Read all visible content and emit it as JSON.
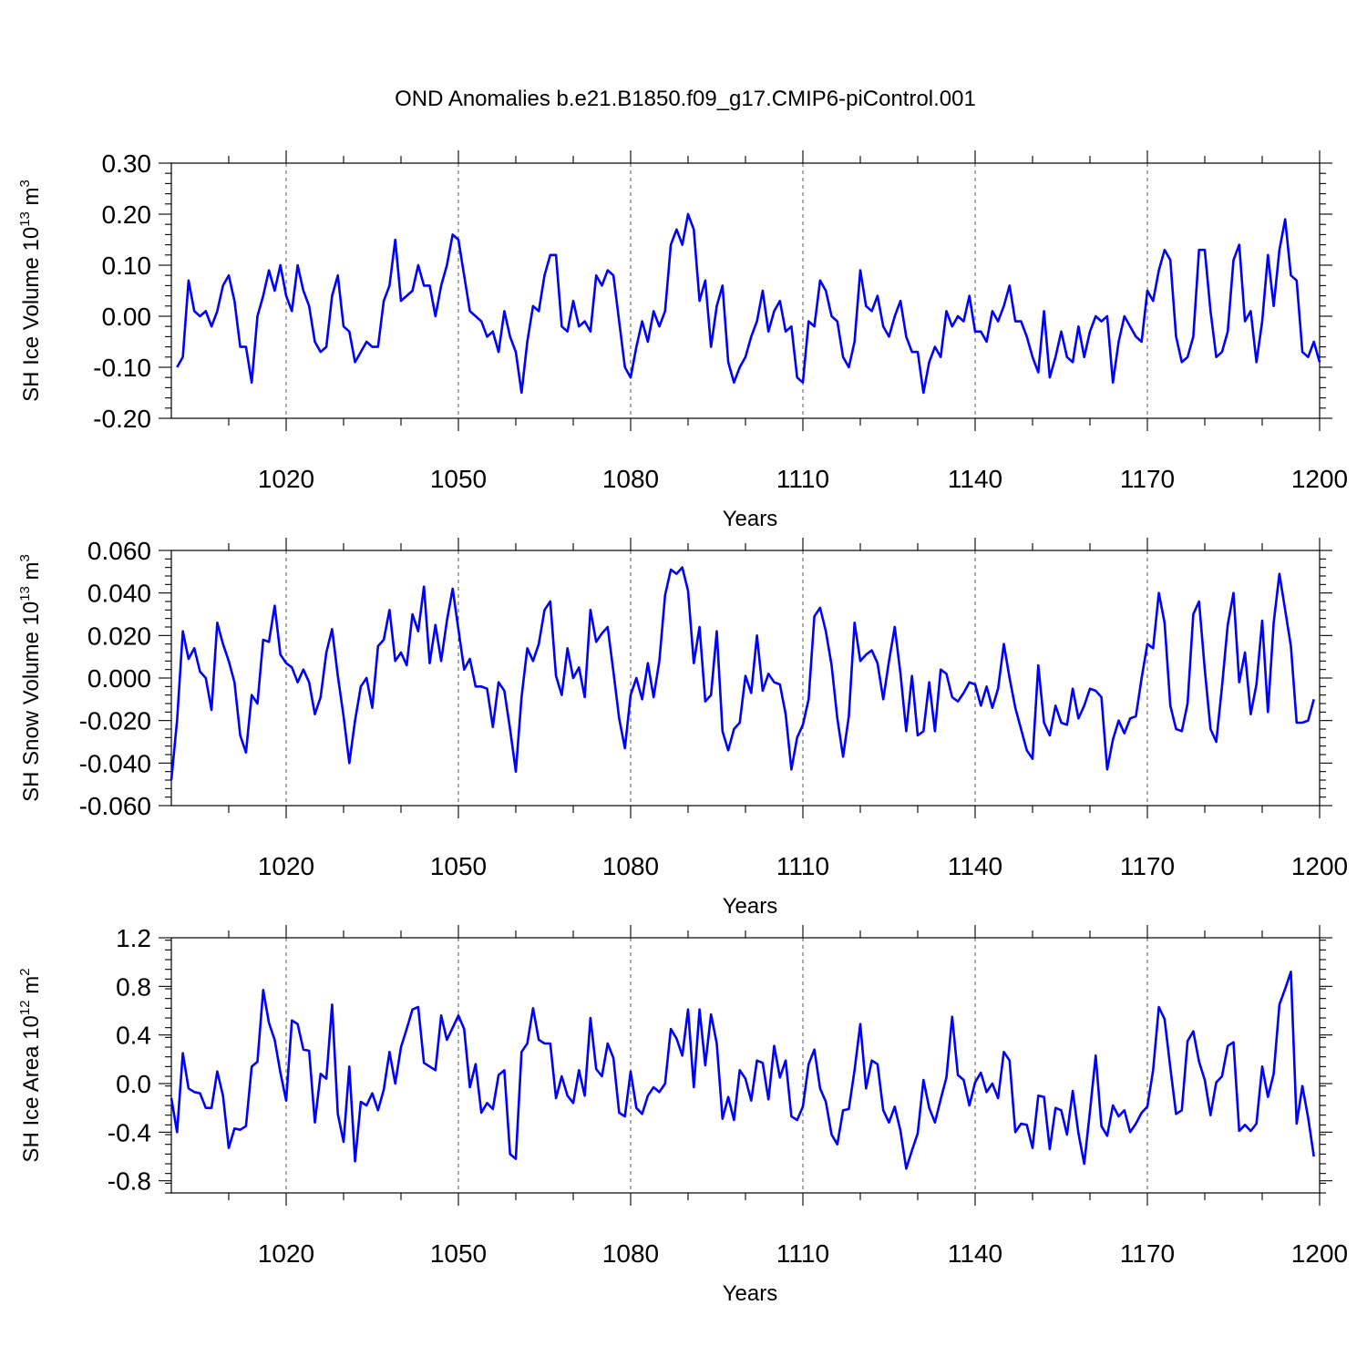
{
  "page": {
    "title": "OND Anomalies b.e21.B1850.f09_g17.CMIP6-piControl.001"
  },
  "style": {
    "line_color": "#0000ff",
    "frame_color": "#000000"
  },
  "chart_data": [
    {
      "type": "line",
      "title": "OND Anomalies b.e21.B1850.f09_g17.CMIP6-piControl.001",
      "xlabel": "Years",
      "ylabel": "SH Ice Volume 10",
      "ylabel_sup1": "13",
      "ylabel_mid": " m",
      "ylabel_sup2": "3",
      "xlim": [
        1000,
        1200
      ],
      "ylim": [
        -0.2,
        0.3
      ],
      "xticks": [
        1020,
        1050,
        1080,
        1110,
        1140,
        1170,
        1200
      ],
      "xtick_labels": [
        "1020",
        "1050",
        "1080",
        "1110",
        "1140",
        "1170",
        "1200"
      ],
      "yticks": [
        -0.2,
        -0.1,
        0.0,
        0.1,
        0.2,
        0.3
      ],
      "ytick_labels": [
        "-0.20",
        "-0.10",
        "0.00",
        "0.10",
        "0.20",
        "0.30"
      ],
      "grid": "vertical dashed at major x ticks",
      "x_start": 1001,
      "series": [
        {
          "name": "SH Ice Volume",
          "values": [
            -0.1,
            -0.08,
            0.07,
            0.01,
            0.0,
            0.01,
            -0.02,
            0.01,
            0.06,
            0.08,
            0.03,
            -0.06,
            -0.06,
            -0.13,
            0.0,
            0.04,
            0.09,
            0.05,
            0.1,
            0.04,
            0.01,
            0.1,
            0.05,
            0.02,
            -0.05,
            -0.07,
            -0.06,
            0.04,
            0.08,
            -0.02,
            -0.03,
            -0.09,
            -0.07,
            -0.05,
            -0.06,
            -0.06,
            0.03,
            0.06,
            0.15,
            0.03,
            0.04,
            0.05,
            0.1,
            0.06,
            0.06,
            0.0,
            0.06,
            0.1,
            0.16,
            0.15,
            0.08,
            0.01,
            0.0,
            -0.01,
            -0.04,
            -0.03,
            -0.07,
            0.01,
            -0.04,
            -0.07,
            -0.15,
            -0.05,
            0.02,
            0.01,
            0.08,
            0.12,
            0.12,
            -0.02,
            -0.03,
            0.03,
            -0.02,
            -0.01,
            -0.03,
            0.08,
            0.06,
            0.09,
            0.08,
            -0.01,
            -0.1,
            -0.12,
            -0.06,
            -0.01,
            -0.05,
            0.01,
            -0.02,
            0.01,
            0.14,
            0.17,
            0.14,
            0.2,
            0.17,
            0.03,
            0.07,
            -0.06,
            0.02,
            0.06,
            -0.09,
            -0.13,
            -0.1,
            -0.08,
            -0.04,
            -0.01,
            0.05,
            -0.03,
            0.01,
            0.03,
            -0.03,
            -0.02,
            -0.12,
            -0.13,
            -0.01,
            -0.02,
            0.07,
            0.05,
            0.0,
            -0.01,
            -0.08,
            -0.1,
            -0.05,
            0.09,
            0.02,
            0.01,
            0.04,
            -0.02,
            -0.04,
            0.0,
            0.03,
            -0.04,
            -0.07,
            -0.07,
            -0.15,
            -0.09,
            -0.06,
            -0.08,
            0.01,
            -0.02,
            0.0,
            -0.01,
            0.04,
            -0.03,
            -0.03,
            -0.05,
            0.01,
            -0.01,
            0.02,
            0.06,
            -0.01,
            -0.01,
            -0.04,
            -0.08,
            -0.11,
            0.01,
            -0.12,
            -0.08,
            -0.03,
            -0.08,
            -0.09,
            -0.02,
            -0.08,
            -0.03,
            0.0,
            -0.01,
            0.0,
            -0.13,
            -0.05,
            0.0,
            -0.02,
            -0.04,
            -0.05,
            0.05,
            0.03,
            0.09,
            0.13,
            0.11,
            -0.04,
            -0.09,
            -0.08,
            -0.04,
            0.13,
            0.13,
            0.01,
            -0.08,
            -0.07,
            -0.03,
            0.11,
            0.14,
            -0.01,
            0.01,
            -0.09,
            -0.01,
            0.12,
            0.02,
            0.13,
            0.19,
            0.08,
            0.07,
            -0.07,
            -0.08,
            -0.05,
            -0.09
          ]
        }
      ]
    },
    {
      "type": "line",
      "xlabel": "Years",
      "ylabel": "SH Snow Volume 10",
      "ylabel_sup1": "13",
      "ylabel_mid": " m",
      "ylabel_sup2": "3",
      "xlim": [
        1000,
        1200
      ],
      "ylim": [
        -0.06,
        0.06
      ],
      "xticks": [
        1020,
        1050,
        1080,
        1110,
        1140,
        1170,
        1200
      ],
      "xtick_labels": [
        "1020",
        "1050",
        "1080",
        "1110",
        "1140",
        "1170",
        "1200"
      ],
      "yticks": [
        -0.06,
        -0.04,
        -0.02,
        0.0,
        0.02,
        0.04,
        0.06
      ],
      "ytick_labels": [
        "-0.060",
        "-0.040",
        "-0.020",
        "0.000",
        "0.020",
        "0.040",
        "0.060"
      ],
      "grid": "vertical dashed at major x ticks",
      "x_start": 1000,
      "series": [
        {
          "name": "SH Snow Volume",
          "values": [
            -0.048,
            -0.02,
            0.022,
            0.009,
            0.014,
            0.003,
            0.0,
            -0.015,
            0.026,
            0.016,
            0.008,
            -0.002,
            -0.027,
            -0.035,
            -0.008,
            -0.012,
            0.018,
            0.017,
            0.034,
            0.011,
            0.007,
            0.005,
            -0.002,
            0.004,
            -0.002,
            -0.017,
            -0.009,
            0.012,
            0.023,
            0.001,
            -0.018,
            -0.04,
            -0.02,
            -0.004,
            0.0,
            -0.014,
            0.015,
            0.018,
            0.032,
            0.008,
            0.012,
            0.006,
            0.03,
            0.022,
            0.043,
            0.007,
            0.025,
            0.008,
            0.027,
            0.042,
            0.023,
            0.004,
            0.009,
            -0.004,
            -0.004,
            -0.005,
            -0.023,
            -0.002,
            -0.006,
            -0.024,
            -0.044,
            -0.009,
            0.014,
            0.008,
            0.016,
            0.032,
            0.036,
            0.001,
            -0.008,
            0.014,
            0.0,
            0.005,
            -0.009,
            0.032,
            0.017,
            0.021,
            0.024,
            0.003,
            -0.019,
            -0.033,
            -0.008,
            0.0,
            -0.01,
            0.007,
            -0.009,
            0.008,
            0.039,
            0.051,
            0.049,
            0.052,
            0.041,
            0.007,
            0.024,
            -0.011,
            -0.008,
            0.022,
            -0.025,
            -0.034,
            -0.024,
            -0.021,
            0.001,
            -0.007,
            0.02,
            -0.006,
            0.002,
            -0.002,
            -0.003,
            -0.017,
            -0.043,
            -0.028,
            -0.022,
            -0.01,
            0.029,
            0.033,
            0.022,
            0.006,
            -0.019,
            -0.037,
            -0.018,
            0.026,
            0.008,
            0.011,
            0.013,
            0.007,
            -0.01,
            0.008,
            0.024,
            0.002,
            -0.025,
            0.001,
            -0.027,
            -0.025,
            -0.002,
            -0.025,
            0.004,
            0.002,
            -0.009,
            -0.011,
            -0.007,
            -0.002,
            -0.003,
            -0.013,
            -0.004,
            -0.014,
            -0.005,
            0.016,
            0.0,
            -0.014,
            -0.024,
            -0.034,
            -0.038,
            0.006,
            -0.021,
            -0.027,
            -0.013,
            -0.021,
            -0.022,
            -0.005,
            -0.019,
            -0.013,
            -0.005,
            -0.006,
            -0.009,
            -0.043,
            -0.029,
            -0.02,
            -0.026,
            -0.019,
            -0.018,
            0.0,
            0.016,
            0.014,
            0.04,
            0.026,
            -0.013,
            -0.024,
            -0.025,
            -0.012,
            0.03,
            0.036,
            0.004,
            -0.024,
            -0.03,
            -0.004,
            0.025,
            0.04,
            -0.002,
            0.012,
            -0.017,
            -0.003,
            0.027,
            -0.016,
            0.026,
            0.049,
            0.032,
            0.015,
            -0.021,
            -0.021,
            -0.02,
            -0.01
          ]
        }
      ]
    },
    {
      "type": "line",
      "xlabel": "Years",
      "ylabel": "SH Ice Area 10",
      "ylabel_sup1": "12",
      "ylabel_mid": " m",
      "ylabel_sup2": "2",
      "xlim": [
        1000,
        1200
      ],
      "ylim": [
        -0.9,
        1.2
      ],
      "xticks": [
        1020,
        1050,
        1080,
        1110,
        1140,
        1170,
        1200
      ],
      "xtick_labels": [
        "1020",
        "1050",
        "1080",
        "1110",
        "1140",
        "1170",
        "1200"
      ],
      "yticks": [
        -0.8,
        -0.4,
        0.0,
        0.4,
        0.8,
        1.2
      ],
      "ytick_labels": [
        "-0.8",
        "-0.4",
        "0.0",
        "0.4",
        "0.8",
        "1.2"
      ],
      "grid": "vertical dashed at major x ticks",
      "x_start": 1000,
      "series": [
        {
          "name": "SH Ice Area",
          "values": [
            -0.12,
            -0.4,
            0.25,
            -0.04,
            -0.07,
            -0.08,
            -0.2,
            -0.2,
            0.1,
            -0.1,
            -0.53,
            -0.37,
            -0.38,
            -0.35,
            0.14,
            0.18,
            0.77,
            0.5,
            0.36,
            0.09,
            -0.14,
            0.52,
            0.49,
            0.28,
            0.27,
            -0.32,
            0.08,
            0.04,
            0.65,
            -0.25,
            -0.48,
            0.14,
            -0.64,
            -0.15,
            -0.18,
            -0.08,
            -0.22,
            -0.05,
            0.26,
            0.0,
            0.3,
            0.45,
            0.61,
            0.63,
            0.17,
            0.14,
            0.11,
            0.56,
            0.36,
            0.46,
            0.56,
            0.45,
            -0.03,
            0.16,
            -0.24,
            -0.16,
            -0.21,
            0.07,
            0.11,
            -0.58,
            -0.62,
            0.26,
            0.33,
            0.62,
            0.36,
            0.33,
            0.33,
            -0.12,
            0.06,
            -0.1,
            -0.16,
            0.11,
            -0.1,
            0.54,
            0.12,
            0.06,
            0.33,
            0.21,
            -0.24,
            -0.27,
            0.1,
            -0.2,
            -0.25,
            -0.1,
            -0.03,
            -0.07,
            0.0,
            0.45,
            0.37,
            0.23,
            0.61,
            -0.03,
            0.61,
            0.15,
            0.57,
            0.33,
            -0.29,
            -0.11,
            -0.3,
            0.11,
            0.04,
            -0.14,
            0.19,
            0.17,
            -0.13,
            0.31,
            0.05,
            0.19,
            -0.27,
            -0.3,
            -0.19,
            0.16,
            0.28,
            -0.04,
            -0.15,
            -0.42,
            -0.5,
            -0.22,
            -0.21,
            0.11,
            0.49,
            -0.04,
            0.19,
            0.16,
            -0.22,
            -0.32,
            -0.19,
            -0.39,
            -0.7,
            -0.55,
            -0.41,
            0.03,
            -0.2,
            -0.32,
            -0.13,
            0.05,
            0.55,
            0.07,
            0.03,
            -0.18,
            0.01,
            0.09,
            -0.07,
            0.0,
            -0.12,
            0.26,
            0.19,
            -0.4,
            -0.33,
            -0.34,
            -0.53,
            -0.1,
            -0.11,
            -0.54,
            -0.2,
            -0.22,
            -0.42,
            -0.06,
            -0.41,
            -0.66,
            -0.23,
            0.23,
            -0.35,
            -0.43,
            -0.18,
            -0.27,
            -0.22,
            -0.4,
            -0.33,
            -0.24,
            -0.19,
            0.11,
            0.63,
            0.53,
            0.13,
            -0.25,
            -0.22,
            0.35,
            0.43,
            0.18,
            0.03,
            -0.26,
            0.01,
            0.06,
            0.31,
            0.34,
            -0.39,
            -0.34,
            -0.39,
            -0.33,
            0.14,
            -0.11,
            0.08,
            0.65,
            0.78,
            0.92,
            -0.33,
            -0.02,
            -0.28,
            -0.6
          ]
        }
      ]
    }
  ]
}
